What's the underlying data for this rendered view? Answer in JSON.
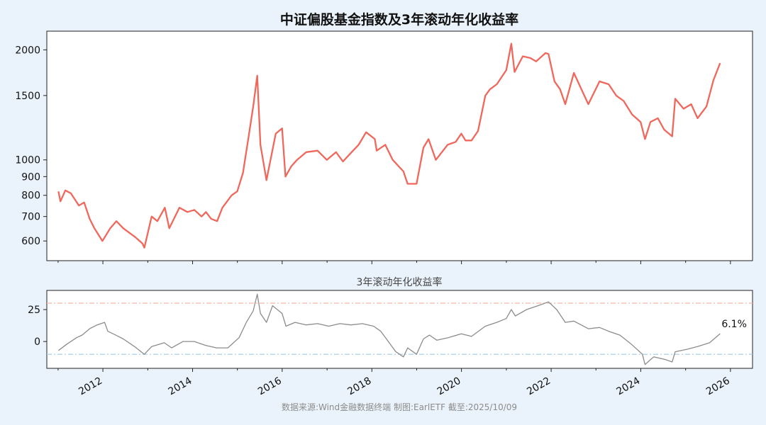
{
  "title": "中证偏股基金指数及3年滚动年化收益率",
  "source": "数据来源:Wind金融数据终端  制图:EarlETF 截至:2025/10/09",
  "colors": {
    "background": "#eaf3fb",
    "panel": "#ffffff",
    "index_line": "#f0675c",
    "rolling_line": "#8c8c8c",
    "upper_ref": "#f3b6a6",
    "lower_ref": "#9fcbe6"
  },
  "chart_data": [
    {
      "type": "line",
      "title": "",
      "xlabel": "",
      "ylabel": "",
      "y_scale": "log",
      "ylim": [
        530,
        2250
      ],
      "xlim": [
        "2010-10-01",
        "2026-06-30"
      ],
      "grid": false,
      "y_ticks": [
        600,
        700,
        800,
        900,
        1000,
        1500,
        2000
      ],
      "x_ticks": [
        "2012",
        "2014",
        "2016",
        "2018",
        "2020",
        "2022",
        "2024",
        "2026"
      ],
      "series": [
        {
          "points": [
            [
              "2011-01-04",
              820
            ],
            [
              "2011-01-20",
              770
            ],
            [
              "2011-03-01",
              825
            ],
            [
              "2011-04-15",
              810
            ],
            [
              "2011-06-20",
              750
            ],
            [
              "2011-08-01",
              765
            ],
            [
              "2011-09-15",
              690
            ],
            [
              "2011-10-24",
              650
            ],
            [
              "2011-12-28",
              600
            ],
            [
              "2012-03-01",
              650
            ],
            [
              "2012-04-20",
              680
            ],
            [
              "2012-06-15",
              650
            ],
            [
              "2012-09-20",
              615
            ],
            [
              "2012-11-20",
              590
            ],
            [
              "2012-12-04",
              575
            ],
            [
              "2013-02-01",
              700
            ],
            [
              "2013-03-20",
              680
            ],
            [
              "2013-05-20",
              740
            ],
            [
              "2013-06-25",
              650
            ],
            [
              "2013-09-15",
              740
            ],
            [
              "2013-11-20",
              720
            ],
            [
              "2014-01-15",
              730
            ],
            [
              "2014-03-15",
              700
            ],
            [
              "2014-04-20",
              720
            ],
            [
              "2014-06-01",
              690
            ],
            [
              "2014-07-20",
              680
            ],
            [
              "2014-09-01",
              740
            ],
            [
              "2014-11-15",
              800
            ],
            [
              "2014-12-31",
              820
            ],
            [
              "2015-02-15",
              920
            ],
            [
              "2015-04-01",
              1150
            ],
            [
              "2015-05-10",
              1400
            ],
            [
              "2015-06-12",
              1700
            ],
            [
              "2015-07-08",
              1100
            ],
            [
              "2015-08-26",
              880
            ],
            [
              "2015-11-10",
              1180
            ],
            [
              "2015-12-31",
              1220
            ],
            [
              "2016-01-28",
              900
            ],
            [
              "2016-03-15",
              960
            ],
            [
              "2016-05-01",
              1000
            ],
            [
              "2016-07-15",
              1050
            ],
            [
              "2016-10-15",
              1060
            ],
            [
              "2016-12-30",
              1000
            ],
            [
              "2017-03-15",
              1050
            ],
            [
              "2017-05-10",
              990
            ],
            [
              "2017-07-20",
              1050
            ],
            [
              "2017-09-15",
              1100
            ],
            [
              "2017-11-15",
              1190
            ],
            [
              "2018-01-25",
              1140
            ],
            [
              "2018-02-09",
              1060
            ],
            [
              "2018-04-20",
              1100
            ],
            [
              "2018-06-20",
              1000
            ],
            [
              "2018-09-15",
              930
            ],
            [
              "2018-10-19",
              860
            ],
            [
              "2018-12-31",
              860
            ],
            [
              "2019-02-25",
              1080
            ],
            [
              "2019-04-08",
              1140
            ],
            [
              "2019-06-06",
              1000
            ],
            [
              "2019-09-10",
              1100
            ],
            [
              "2019-11-15",
              1120
            ],
            [
              "2019-12-31",
              1180
            ],
            [
              "2020-02-03",
              1130
            ],
            [
              "2020-03-23",
              1130
            ],
            [
              "2020-05-15",
              1200
            ],
            [
              "2020-07-14",
              1500
            ],
            [
              "2020-08-20",
              1560
            ],
            [
              "2020-10-15",
              1610
            ],
            [
              "2020-12-31",
              1760
            ],
            [
              "2021-02-10",
              2080
            ],
            [
              "2021-03-09",
              1740
            ],
            [
              "2021-05-15",
              1920
            ],
            [
              "2021-07-15",
              1900
            ],
            [
              "2021-09-01",
              1860
            ],
            [
              "2021-11-15",
              1960
            ],
            [
              "2021-12-10",
              1950
            ],
            [
              "2022-01-28",
              1640
            ],
            [
              "2022-03-15",
              1560
            ],
            [
              "2022-04-26",
              1420
            ],
            [
              "2022-07-05",
              1730
            ],
            [
              "2022-09-01",
              1570
            ],
            [
              "2022-10-31",
              1420
            ],
            [
              "2023-01-30",
              1640
            ],
            [
              "2023-04-15",
              1610
            ],
            [
              "2023-06-15",
              1500
            ],
            [
              "2023-08-15",
              1450
            ],
            [
              "2023-10-23",
              1330
            ],
            [
              "2023-12-31",
              1270
            ],
            [
              "2024-02-05",
              1140
            ],
            [
              "2024-03-20",
              1270
            ],
            [
              "2024-05-20",
              1300
            ],
            [
              "2024-07-10",
              1210
            ],
            [
              "2024-09-13",
              1160
            ],
            [
              "2024-10-08",
              1470
            ],
            [
              "2024-12-15",
              1380
            ],
            [
              "2025-02-15",
              1420
            ],
            [
              "2025-04-08",
              1300
            ],
            [
              "2025-06-20",
              1400
            ],
            [
              "2025-08-15",
              1650
            ],
            [
              "2025-10-09",
              1840
            ]
          ]
        }
      ]
    },
    {
      "type": "line",
      "title": "3年滚动年化收益率",
      "xlabel": "",
      "ylabel": "",
      "ylim": [
        -21,
        40
      ],
      "xlim": [
        "2010-10-01",
        "2026-06-30"
      ],
      "grid": false,
      "y_ticks": [
        0,
        25
      ],
      "x_ticks": [
        "2012",
        "2014",
        "2016",
        "2018",
        "2020",
        "2022",
        "2024",
        "2026"
      ],
      "reference_lines": [
        30,
        -10
      ],
      "last_value_label": "6.1%",
      "series": [
        {
          "points": [
            [
              "2011-01-04",
              -7
            ],
            [
              "2011-03-15",
              -2
            ],
            [
              "2011-06-01",
              3
            ],
            [
              "2011-07-15",
              5
            ],
            [
              "2011-09-15",
              10
            ],
            [
              "2011-11-15",
              13
            ],
            [
              "2012-01-15",
              15
            ],
            [
              "2012-02-10",
              8
            ],
            [
              "2012-04-15",
              5
            ],
            [
              "2012-06-15",
              2
            ],
            [
              "2012-09-15",
              -4
            ],
            [
              "2012-12-04",
              -10
            ],
            [
              "2013-02-01",
              -4
            ],
            [
              "2013-05-15",
              -1
            ],
            [
              "2013-07-15",
              -5
            ],
            [
              "2013-10-15",
              0
            ],
            [
              "2014-01-15",
              0
            ],
            [
              "2014-04-15",
              -3
            ],
            [
              "2014-07-15",
              -5
            ],
            [
              "2014-10-15",
              -5
            ],
            [
              "2015-01-15",
              3
            ],
            [
              "2015-03-15",
              15
            ],
            [
              "2015-05-10",
              24
            ],
            [
              "2015-06-12",
              37
            ],
            [
              "2015-07-08",
              22
            ],
            [
              "2015-08-26",
              15
            ],
            [
              "2015-10-15",
              28
            ],
            [
              "2015-12-31",
              22
            ],
            [
              "2016-02-01",
              12
            ],
            [
              "2016-04-15",
              15
            ],
            [
              "2016-07-15",
              13
            ],
            [
              "2016-10-15",
              14
            ],
            [
              "2017-01-15",
              12
            ],
            [
              "2017-04-15",
              14
            ],
            [
              "2017-07-15",
              13
            ],
            [
              "2017-10-15",
              14
            ],
            [
              "2018-01-15",
              12
            ],
            [
              "2018-03-15",
              8
            ],
            [
              "2018-05-15",
              0
            ],
            [
              "2018-07-15",
              -8
            ],
            [
              "2018-09-15",
              -12
            ],
            [
              "2018-10-20",
              -5
            ],
            [
              "2018-12-31",
              -10
            ],
            [
              "2019-02-25",
              2
            ],
            [
              "2019-04-15",
              5
            ],
            [
              "2019-06-15",
              1
            ],
            [
              "2019-09-15",
              3
            ],
            [
              "2019-12-31",
              6
            ],
            [
              "2020-03-23",
              4
            ],
            [
              "2020-07-14",
              12
            ],
            [
              "2020-10-15",
              15
            ],
            [
              "2020-12-31",
              18
            ],
            [
              "2021-02-10",
              25
            ],
            [
              "2021-03-15",
              20
            ],
            [
              "2021-06-15",
              25
            ],
            [
              "2021-09-15",
              28
            ],
            [
              "2021-12-10",
              31
            ],
            [
              "2022-02-15",
              25
            ],
            [
              "2022-04-26",
              15
            ],
            [
              "2022-07-05",
              16
            ],
            [
              "2022-10-31",
              10
            ],
            [
              "2023-01-30",
              11
            ],
            [
              "2023-04-15",
              8
            ],
            [
              "2023-07-15",
              5
            ],
            [
              "2023-10-15",
              -2
            ],
            [
              "2024-01-15",
              -10
            ],
            [
              "2024-02-05",
              -18
            ],
            [
              "2024-04-15",
              -12
            ],
            [
              "2024-07-15",
              -14
            ],
            [
              "2024-09-13",
              -16
            ],
            [
              "2024-10-08",
              -8
            ],
            [
              "2025-01-15",
              -6
            ],
            [
              "2025-04-08",
              -4
            ],
            [
              "2025-07-15",
              -1
            ],
            [
              "2025-10-09",
              6.1
            ]
          ]
        }
      ]
    }
  ]
}
